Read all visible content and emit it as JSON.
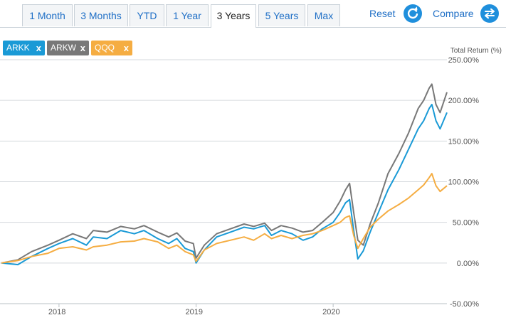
{
  "tabs": [
    {
      "label": "1 Month",
      "active": false
    },
    {
      "label": "3 Months",
      "active": false
    },
    {
      "label": "YTD",
      "active": false
    },
    {
      "label": "1 Year",
      "active": false
    },
    {
      "label": "3 Years",
      "active": true
    },
    {
      "label": "5 Years",
      "active": false
    },
    {
      "label": "Max",
      "active": false
    }
  ],
  "actions": {
    "reset_label": "Reset",
    "compare_label": "Compare",
    "reset_icon": "refresh-icon",
    "compare_icon": "swap-arrows-icon"
  },
  "legend": [
    {
      "label": "ARKK",
      "remove": "x",
      "color": "#1a9ad6"
    },
    {
      "label": "ARKW",
      "remove": "x",
      "color": "#787878"
    },
    {
      "label": "QQQ",
      "remove": "x",
      "color": "#f5ad42"
    }
  ],
  "colors": {
    "accent": "#1f6fc6",
    "button": "#1f8fdc",
    "grid": "#d5d9dd"
  },
  "chart_data": {
    "type": "line",
    "title": "",
    "ylabel": "Total Return (%)",
    "xlabel": "",
    "ylim": [
      -50,
      250
    ],
    "yticks": [
      -50,
      0,
      50,
      100,
      150,
      200,
      250
    ],
    "ytick_labels": [
      "-50.00%",
      "0.00%",
      "50.00%",
      "100.00%",
      "150.00%",
      "200.00%",
      "250.00%"
    ],
    "xlim": [
      2017.58,
      2020.83
    ],
    "xticks": [
      2018,
      2019,
      2020
    ],
    "xtick_labels": [
      "2018",
      "2019",
      "2020"
    ],
    "grid": "horizontal",
    "series": [
      {
        "name": "ARKW",
        "color": "#787878",
        "x": [
          2017.58,
          2017.7,
          2017.8,
          2017.92,
          2018.0,
          2018.1,
          2018.2,
          2018.25,
          2018.35,
          2018.45,
          2018.55,
          2018.62,
          2018.72,
          2018.8,
          2018.86,
          2018.92,
          2018.98,
          2019.0,
          2019.06,
          2019.15,
          2019.25,
          2019.35,
          2019.42,
          2019.5,
          2019.55,
          2019.62,
          2019.7,
          2019.78,
          2019.85,
          2019.92,
          2020.0,
          2020.05,
          2020.09,
          2020.12,
          2020.15,
          2020.18,
          2020.22,
          2020.27,
          2020.33,
          2020.4,
          2020.48,
          2020.55,
          2020.62,
          2020.66,
          2020.7,
          2020.72,
          2020.75,
          2020.78,
          2020.83
        ],
        "y": [
          0,
          4,
          14,
          22,
          28,
          36,
          30,
          40,
          38,
          45,
          42,
          46,
          38,
          32,
          37,
          27,
          24,
          6,
          22,
          36,
          42,
          48,
          45,
          49,
          40,
          46,
          43,
          38,
          40,
          50,
          62,
          76,
          90,
          98,
          62,
          28,
          22,
          48,
          74,
          110,
          135,
          160,
          190,
          200,
          215,
          220,
          195,
          185,
          210
        ]
      },
      {
        "name": "ARKK",
        "color": "#1a9ad6",
        "x": [
          2017.58,
          2017.7,
          2017.8,
          2017.92,
          2018.0,
          2018.1,
          2018.2,
          2018.25,
          2018.35,
          2018.45,
          2018.55,
          2018.62,
          2018.72,
          2018.8,
          2018.86,
          2018.92,
          2018.98,
          2019.0,
          2019.06,
          2019.15,
          2019.25,
          2019.35,
          2019.42,
          2019.5,
          2019.55,
          2019.62,
          2019.7,
          2019.78,
          2019.85,
          2019.92,
          2020.0,
          2020.05,
          2020.09,
          2020.12,
          2020.15,
          2020.18,
          2020.22,
          2020.27,
          2020.33,
          2020.4,
          2020.48,
          2020.55,
          2020.62,
          2020.66,
          2020.7,
          2020.72,
          2020.75,
          2020.78,
          2020.83
        ],
        "y": [
          0,
          -2,
          8,
          18,
          24,
          30,
          22,
          32,
          30,
          40,
          36,
          40,
          30,
          24,
          30,
          18,
          14,
          0,
          16,
          32,
          38,
          44,
          42,
          46,
          34,
          40,
          36,
          28,
          32,
          42,
          50,
          62,
          74,
          78,
          40,
          5,
          15,
          38,
          62,
          90,
          115,
          140,
          165,
          175,
          190,
          195,
          175,
          165,
          185
        ]
      },
      {
        "name": "QQQ",
        "color": "#f5ad42",
        "x": [
          2017.58,
          2017.7,
          2017.8,
          2017.92,
          2018.0,
          2018.1,
          2018.2,
          2018.25,
          2018.35,
          2018.45,
          2018.55,
          2018.62,
          2018.72,
          2018.8,
          2018.86,
          2018.92,
          2018.98,
          2019.0,
          2019.06,
          2019.15,
          2019.25,
          2019.35,
          2019.42,
          2019.5,
          2019.55,
          2019.62,
          2019.7,
          2019.78,
          2019.85,
          2019.92,
          2020.0,
          2020.05,
          2020.09,
          2020.12,
          2020.15,
          2020.18,
          2020.22,
          2020.27,
          2020.33,
          2020.4,
          2020.48,
          2020.55,
          2020.62,
          2020.66,
          2020.7,
          2020.72,
          2020.75,
          2020.78,
          2020.83
        ],
        "y": [
          0,
          3,
          8,
          12,
          18,
          20,
          16,
          20,
          22,
          26,
          27,
          30,
          26,
          18,
          22,
          14,
          10,
          2,
          16,
          24,
          28,
          32,
          28,
          36,
          30,
          34,
          30,
          34,
          36,
          40,
          46,
          50,
          56,
          58,
          34,
          18,
          30,
          44,
          54,
          64,
          72,
          80,
          90,
          96,
          105,
          110,
          95,
          88,
          95
        ]
      }
    ]
  }
}
